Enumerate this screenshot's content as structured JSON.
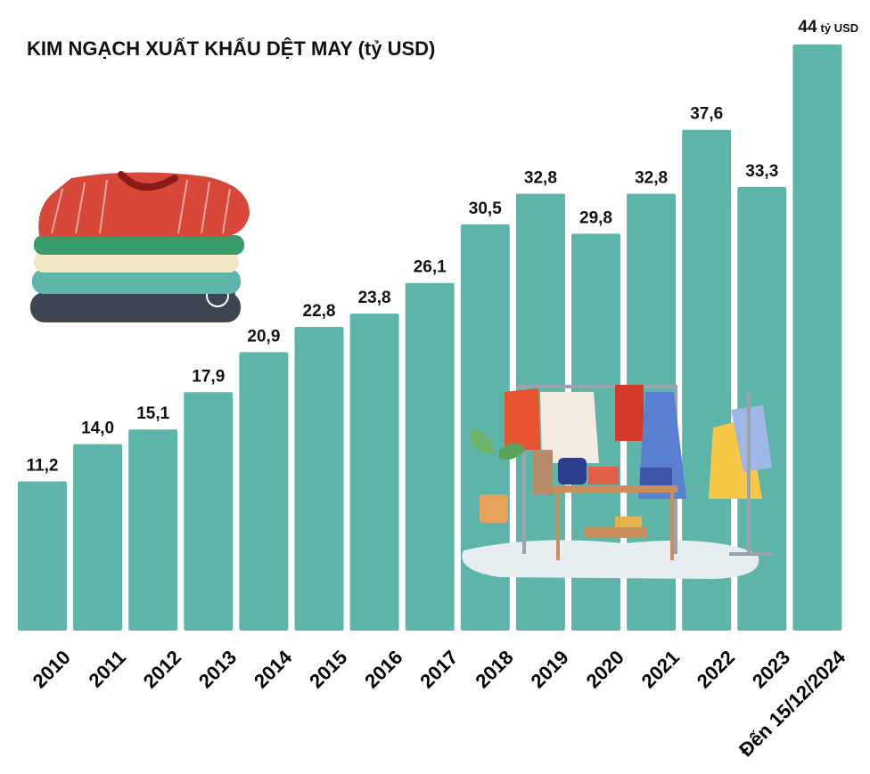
{
  "title": "KIM NGẠCH XUẤT KHẨU DỆT MAY (tỷ USD)",
  "colors": {
    "bar": "#5db5aa",
    "text": "#111111"
  },
  "chart_data": {
    "type": "bar",
    "title": "KIM NGẠCH XUẤT KHẨU DỆT MAY (tỷ USD)",
    "categories": [
      "2010",
      "2011",
      "2012",
      "2013",
      "2014",
      "2015",
      "2016",
      "2017",
      "2018",
      "2019",
      "2020",
      "2021",
      "2022",
      "2023",
      "Đến 15/12/2024"
    ],
    "values": [
      11.2,
      14.0,
      15.1,
      17.9,
      20.9,
      22.8,
      23.8,
      26.1,
      30.5,
      32.8,
      29.8,
      32.8,
      37.6,
      33.3,
      44
    ],
    "value_labels": [
      "11,2",
      "14,0",
      "15,1",
      "17,9",
      "20,9",
      "22,8",
      "23,8",
      "26,1",
      "30,5",
      "32,8",
      "29,8",
      "32,8",
      "37,6",
      "33,3",
      "44"
    ],
    "last_value_unit": "tỷ USD",
    "xlabel": "",
    "ylabel": "",
    "ylim": [
      0,
      44
    ],
    "grid": false,
    "legend": "none"
  }
}
